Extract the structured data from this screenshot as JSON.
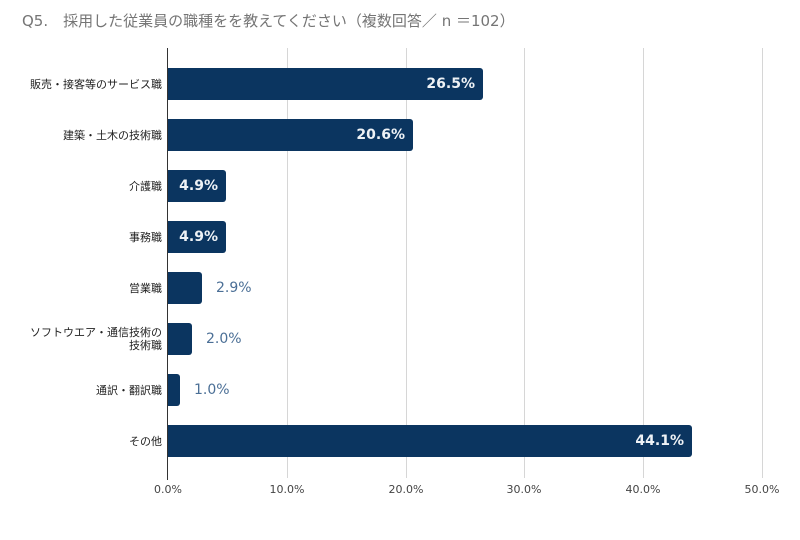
{
  "title": "Q5.　採用した従業員の職種をを教えてください（複数回答／ n ＝102）",
  "colors": {
    "bar": "#0b3560",
    "label_inside": "#eef2f6",
    "label_outside": "#4b6f96",
    "grid": "#d6d6d6"
  },
  "chart_data": {
    "type": "bar",
    "orientation": "horizontal",
    "title": "Q5.　採用した従業員の職種をを教えてください（複数回答／ n ＝102）",
    "categories": [
      "販売・接客等のサービス職",
      "建築・土木の技術職",
      "介護職",
      "事務職",
      "営業職",
      "ソフトウエア・通信技術の技術職",
      "通訳・翻訳職",
      "その他"
    ],
    "values": [
      26.5,
      20.6,
      4.9,
      4.9,
      2.9,
      2.0,
      1.0,
      44.1
    ],
    "value_labels": [
      "26.5%",
      "20.6%",
      "4.9%",
      "4.9%",
      "2.9%",
      "2.0%",
      "1.0%",
      "44.1%"
    ],
    "xlabel": "",
    "ylabel": "",
    "xlim": [
      0,
      50
    ],
    "xticks": [
      "0.0%",
      "10.0%",
      "20.0%",
      "30.0%",
      "40.0%",
      "50.0%"
    ],
    "grid": true,
    "legend": "none"
  },
  "rows": [
    {
      "label_lines": [
        "販売・接客等のサービス職"
      ],
      "value": 26.5,
      "text": "26.5%",
      "inside": true
    },
    {
      "label_lines": [
        "建築・土木の技術職"
      ],
      "value": 20.6,
      "text": "20.6%",
      "inside": true
    },
    {
      "label_lines": [
        "介護職"
      ],
      "value": 4.9,
      "text": "4.9%",
      "inside": true
    },
    {
      "label_lines": [
        "事務職"
      ],
      "value": 4.9,
      "text": "4.9%",
      "inside": true
    },
    {
      "label_lines": [
        "営業職"
      ],
      "value": 2.9,
      "text": "2.9%",
      "inside": false
    },
    {
      "label_lines": [
        "ソフトウエア・通信技術の",
        "技術職"
      ],
      "value": 2.0,
      "text": "2.0%",
      "inside": false
    },
    {
      "label_lines": [
        "通訳・翻訳職"
      ],
      "value": 1.0,
      "text": "1.0%",
      "inside": false
    },
    {
      "label_lines": [
        "その他"
      ],
      "value": 44.1,
      "text": "44.1%",
      "inside": true
    }
  ]
}
